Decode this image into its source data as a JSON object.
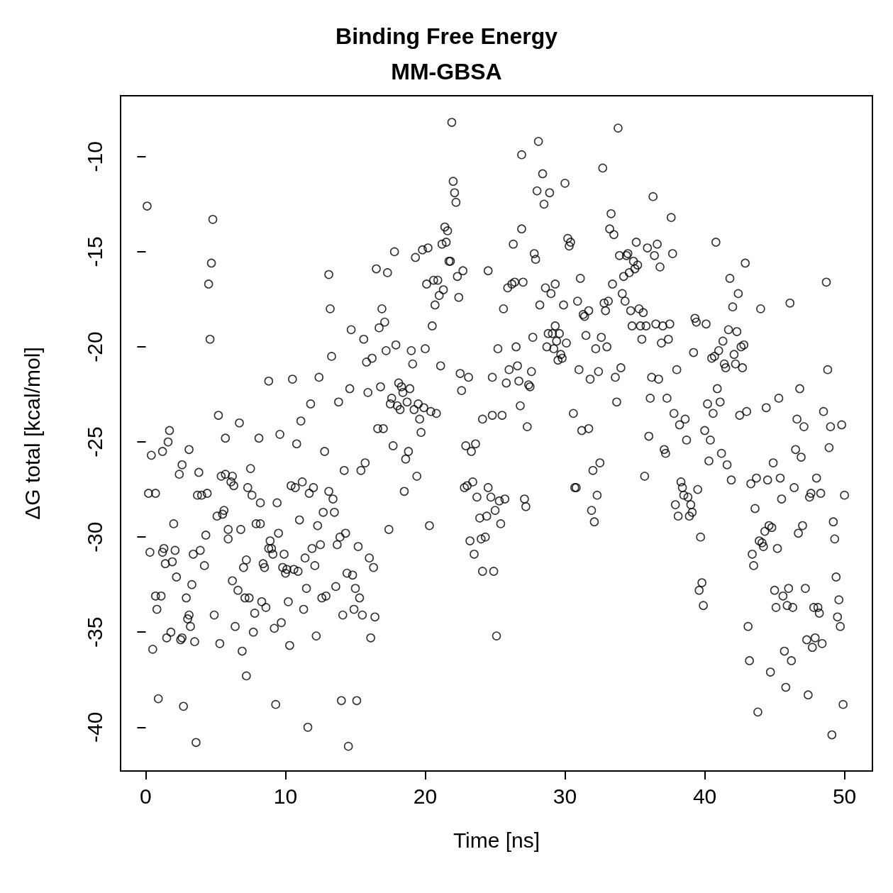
{
  "chart_data": {
    "type": "scatter",
    "title": "Binding Free Energy",
    "subtitle": "MM-GBSA",
    "xlabel": "Time [ns]",
    "ylabel": "ΔG total [kcal/mol]",
    "xlim": [
      -1.8,
      52
    ],
    "ylim": [
      -42.3,
      -6.8
    ],
    "xticks": [
      0,
      10,
      20,
      30,
      40,
      50
    ],
    "yticks": [
      -10,
      -15,
      -20,
      -25,
      -30,
      -35,
      -40
    ],
    "grid": false,
    "marker": "circle",
    "series": [
      {
        "color": "#000000",
        "x": [
          0.1,
          0.3,
          0.2,
          0.4,
          0.5,
          0.7,
          0.7,
          0.8,
          0.9,
          1.1,
          1.2,
          1.3,
          1.2,
          1.4,
          1.5,
          1.6,
          1.7,
          1.8,
          1.9,
          2.0,
          2.1,
          2.2,
          2.4,
          2.5,
          2.6,
          2.6,
          2.7,
          2.9,
          3.0,
          3.1,
          3.1,
          3.2,
          3.3,
          3.4,
          3.5,
          3.6,
          3.7,
          3.8,
          3.9,
          4.0,
          4.2,
          4.3,
          4.4,
          4.5,
          4.6,
          4.7,
          4.8,
          4.9,
          5.1,
          5.2,
          5.3,
          5.4,
          5.5,
          5.6,
          5.7,
          5.7,
          5.9,
          5.9,
          6.1,
          6.2,
          6.2,
          6.3,
          6.4,
          6.6,
          6.7,
          6.8,
          6.9,
          7.0,
          7.1,
          7.2,
          7.2,
          7.3,
          7.4,
          7.5,
          7.6,
          7.7,
          7.8,
          7.9,
          8.1,
          8.2,
          8.2,
          8.3,
          8.4,
          8.5,
          8.6,
          8.8,
          8.8,
          8.9,
          9.0,
          9.1,
          9.2,
          9.3,
          9.4,
          9.5,
          9.6,
          9.7,
          9.8,
          9.9,
          10.0,
          10.1,
          10.2,
          10.3,
          10.4,
          10.5,
          10.6,
          10.7,
          10.8,
          10.9,
          11.0,
          11.1,
          11.2,
          11.3,
          11.4,
          11.5,
          11.6,
          11.7,
          11.8,
          11.9,
          12.0,
          12.1,
          12.2,
          12.3,
          12.4,
          12.5,
          12.6,
          12.7,
          12.8,
          12.9,
          13.1,
          13.1,
          13.2,
          13.3,
          13.4,
          13.5,
          13.6,
          13.7,
          13.8,
          13.9,
          14.0,
          14.1,
          14.2,
          14.3,
          14.4,
          14.5,
          14.6,
          14.7,
          14.8,
          14.9,
          15.0,
          15.1,
          15.2,
          15.3,
          15.4,
          15.5,
          15.6,
          15.7,
          15.8,
          15.9,
          16.0,
          16.1,
          16.2,
          16.3,
          16.4,
          16.5,
          16.6,
          16.7,
          16.8,
          16.9,
          17.0,
          17.1,
          17.2,
          17.3,
          17.4,
          17.5,
          17.6,
          17.7,
          17.8,
          17.9,
          18.0,
          18.1,
          18.2,
          18.3,
          18.4,
          18.5,
          18.6,
          18.7,
          18.8,
          18.9,
          19.0,
          19.1,
          19.2,
          19.3,
          19.4,
          19.5,
          19.6,
          19.7,
          19.8,
          19.9,
          20.0,
          20.1,
          20.2,
          20.3,
          20.4,
          20.5,
          20.6,
          20.7,
          20.8,
          20.9,
          21.0,
          21.1,
          21.2,
          21.3,
          21.4,
          21.5,
          21.6,
          21.7,
          21.8,
          21.9,
          22.0,
          22.1,
          22.2,
          22.3,
          22.4,
          22.5,
          22.6,
          22.7,
          22.8,
          22.9,
          23.0,
          23.1,
          23.2,
          23.3,
          23.4,
          23.5,
          23.6,
          23.7,
          23.9,
          24.0,
          24.1,
          24.1,
          24.3,
          24.4,
          24.5,
          24.5,
          24.7,
          24.8,
          24.8,
          24.9,
          25.0,
          25.1,
          25.2,
          25.3,
          25.4,
          25.5,
          25.6,
          25.7,
          25.8,
          25.9,
          26.0,
          26.2,
          26.3,
          26.4,
          26.5,
          26.6,
          26.7,
          26.8,
          26.9,
          26.9,
          27.0,
          27.1,
          27.2,
          27.3,
          27.4,
          27.5,
          27.6,
          27.7,
          27.8,
          27.9,
          28.0,
          28.1,
          28.2,
          28.4,
          28.5,
          28.6,
          28.7,
          28.8,
          28.9,
          29.0,
          29.1,
          29.2,
          29.3,
          29.3,
          29.4,
          29.5,
          29.6,
          29.7,
          29.8,
          29.9,
          30.0,
          30.1,
          30.2,
          30.3,
          30.4,
          30.6,
          30.7,
          30.8,
          30.9,
          31.0,
          31.1,
          31.2,
          31.3,
          31.4,
          31.5,
          31.7,
          31.7,
          31.8,
          31.9,
          32.0,
          32.1,
          32.2,
          32.3,
          32.4,
          32.5,
          32.6,
          32.7,
          32.8,
          32.9,
          33.0,
          33.1,
          33.2,
          33.3,
          33.4,
          33.5,
          33.6,
          33.7,
          33.8,
          33.9,
          34.0,
          34.1,
          34.2,
          34.3,
          34.4,
          34.5,
          34.6,
          34.7,
          34.8,
          34.9,
          35.0,
          35.1,
          35.2,
          35.3,
          35.4,
          35.5,
          35.6,
          35.7,
          35.8,
          35.9,
          36.0,
          36.1,
          36.2,
          36.3,
          36.4,
          36.5,
          36.6,
          36.7,
          36.8,
          36.9,
          37.0,
          37.1,
          37.2,
          37.3,
          37.4,
          37.5,
          37.6,
          37.7,
          37.8,
          37.9,
          38.0,
          38.1,
          38.2,
          38.3,
          38.4,
          38.5,
          38.6,
          38.7,
          38.8,
          38.9,
          39.0,
          39.1,
          39.2,
          39.3,
          39.4,
          39.5,
          39.6,
          39.7,
          39.8,
          39.9,
          40.0,
          40.1,
          40.2,
          40.3,
          40.4,
          40.5,
          40.6,
          40.7,
          40.8,
          40.9,
          41.0,
          41.1,
          41.2,
          41.3,
          41.4,
          41.5,
          41.6,
          41.7,
          41.8,
          41.9,
          42.0,
          42.1,
          42.2,
          42.3,
          42.4,
          42.5,
          42.6,
          42.7,
          42.8,
          42.9,
          43.0,
          43.1,
          43.2,
          43.3,
          43.4,
          43.5,
          43.6,
          43.7,
          43.8,
          43.9,
          44.0,
          44.1,
          44.2,
          44.3,
          44.4,
          44.5,
          44.6,
          44.7,
          44.8,
          44.9,
          45.0,
          45.1,
          45.2,
          45.3,
          45.4,
          45.5,
          45.6,
          45.7,
          45.8,
          45.9,
          46.0,
          46.1,
          46.2,
          46.3,
          46.4,
          46.5,
          46.6,
          46.7,
          46.8,
          46.9,
          47.0,
          47.1,
          47.2,
          47.3,
          47.4,
          47.5,
          47.6,
          47.7,
          47.8,
          47.9,
          48.0,
          48.1,
          48.2,
          48.3,
          48.4,
          48.5,
          48.7,
          48.8,
          48.9,
          49.0,
          49.1,
          49.2,
          49.3,
          49.4,
          49.5,
          49.6,
          49.7,
          49.8,
          49.9,
          50.0
        ],
        "values": [
          -12.6,
          -30.8,
          -27.7,
          -25.7,
          -35.9,
          -33.1,
          -27.7,
          -33.8,
          -38.5,
          -33.1,
          -30.8,
          -30.6,
          -25.5,
          -31.4,
          -35.3,
          -25.0,
          -24.4,
          -35.0,
          -31.3,
          -29.3,
          -30.7,
          -32.1,
          -26.7,
          -35.4,
          -35.3,
          -26.2,
          -38.9,
          -33.2,
          -34.3,
          -34.1,
          -25.4,
          -34.7,
          -32.5,
          -30.9,
          -35.5,
          -40.8,
          -27.8,
          -26.6,
          -30.7,
          -27.8,
          -31.5,
          -29.9,
          -27.7,
          -16.7,
          -19.6,
          -15.6,
          -13.3,
          -34.1,
          -28.9,
          -23.6,
          -35.6,
          -26.8,
          -28.8,
          -28.6,
          -24.8,
          -26.7,
          -30.1,
          -29.6,
          -27.1,
          -26.8,
          -32.3,
          -27.3,
          -34.7,
          -32.8,
          -24.0,
          -29.6,
          -36.0,
          -31.6,
          -33.2,
          -31.2,
          -37.3,
          -27.4,
          -33.2,
          -26.4,
          -27.8,
          -35.0,
          -34.0,
          -29.3,
          -24.8,
          -28.2,
          -29.3,
          -33.4,
          -31.4,
          -31.6,
          -33.7,
          -21.8,
          -30.6,
          -30.2,
          -30.6,
          -30.9,
          -34.8,
          -38.8,
          -28.2,
          -29.8,
          -24.6,
          -34.5,
          -31.6,
          -30.9,
          -31.9,
          -31.7,
          -33.4,
          -35.7,
          -27.3,
          -21.7,
          -31.7,
          -27.4,
          -25.1,
          -31.8,
          -29.1,
          -23.9,
          -27.1,
          -33.8,
          -31.1,
          -32.7,
          -40.0,
          -27.7,
          -23.0,
          -30.6,
          -27.4,
          -31.5,
          -35.2,
          -29.4,
          -21.6,
          -30.4,
          -33.2,
          -28.7,
          -25.5,
          -33.1,
          -27.6,
          -16.2,
          -18.0,
          -20.5,
          -28.0,
          -28.7,
          -32.6,
          -30.4,
          -22.9,
          -30.0,
          -38.6,
          -34.1,
          -26.5,
          -29.8,
          -31.9,
          -41.0,
          -22.2,
          -19.1,
          -32.0,
          -33.8,
          -32.7,
          -38.6,
          -30.5,
          -33.2,
          -26.5,
          -34.1,
          -19.6,
          -26.1,
          -20.8,
          -22.4,
          -31.1,
          -35.3,
          -20.6,
          -31.6,
          -34.2,
          -15.9,
          -24.3,
          -19.0,
          -22.1,
          -18.0,
          -24.3,
          -18.7,
          -20.2,
          -16.1,
          -29.6,
          -23.0,
          -22.7,
          -25.2,
          -15.0,
          -19.9,
          -23.1,
          -21.9,
          -23.3,
          -22.1,
          -22.4,
          -27.6,
          -25.9,
          -22.9,
          -25.5,
          -22.2,
          -20.2,
          -20.9,
          -23.3,
          -15.3,
          -26.8,
          -23.0,
          -23.8,
          -24.5,
          -14.9,
          -23.2,
          -20.1,
          -16.7,
          -14.8,
          -29.4,
          -23.4,
          -18.9,
          -16.5,
          -17.8,
          -23.5,
          -16.5,
          -17.3,
          -21.0,
          -14.6,
          -17.0,
          -13.7,
          -14.5,
          -13.9,
          -15.5,
          -15.5,
          -8.2,
          -11.3,
          -11.9,
          -12.4,
          -16.3,
          -17.4,
          -21.4,
          -22.3,
          -16.0,
          -27.4,
          -25.2,
          -27.3,
          -21.6,
          -30.2,
          -25.5,
          -27.1,
          -30.9,
          -25.1,
          -27.9,
          -29.0,
          -30.1,
          -23.8,
          -31.8,
          -30.0,
          -28.9,
          -27.4,
          -16.0,
          -27.9,
          -21.6,
          -23.6,
          -31.8,
          -28.6,
          -35.2,
          -20.1,
          -28.1,
          -29.3,
          -23.6,
          -18.0,
          -28.0,
          -21.9,
          -16.9,
          -21.2,
          -16.7,
          -14.6,
          -16.6,
          -20.0,
          -21.0,
          -21.8,
          -23.1,
          -9.9,
          -13.8,
          -16.6,
          -28.0,
          -28.4,
          -24.2,
          -22.0,
          -22.1,
          -21.3,
          -19.5,
          -15.1,
          -15.4,
          -11.8,
          -9.2,
          -17.8,
          -10.9,
          -12.5,
          -16.9,
          -20.0,
          -19.3,
          -11.9,
          -17.2,
          -19.3,
          -20.1,
          -16.7,
          -18.9,
          -19.7,
          -20.7,
          -19.3,
          -20.4,
          -20.6,
          -17.8,
          -11.4,
          -19.8,
          -14.3,
          -14.7,
          -14.5,
          -23.5,
          -27.4,
          -27.4,
          -17.6,
          -21.2,
          -16.4,
          -24.4,
          -18.3,
          -18.4,
          -19.4,
          -24.3,
          -18.1,
          -21.7,
          -28.6,
          -26.5,
          -29.2,
          -20.1,
          -27.8,
          -21.3,
          -26.1,
          -19.5,
          -10.6,
          -17.7,
          -18.1,
          -20.0,
          -17.6,
          -13.8,
          -13.0,
          -16.7,
          -14.1,
          -21.6,
          -22.9,
          -8.5,
          -15.2,
          -21.1,
          -17.2,
          -16.3,
          -17.6,
          -15.2,
          -15.1,
          -16.1,
          -18.1,
          -18.9,
          -15.5,
          -15.9,
          -14.5,
          -15.7,
          -18.0,
          -18.9,
          -19.6,
          -18.2,
          -26.8,
          -18.9,
          -14.8,
          -24.7,
          -22.7,
          -21.6,
          -12.1,
          -15.2,
          -18.8,
          -14.6,
          -21.7,
          -15.8,
          -19.8,
          -18.9,
          -25.4,
          -25.6,
          -22.7,
          -19.6,
          -18.8,
          -13.2,
          -15.1,
          -23.5,
          -28.3,
          -21.2,
          -28.9,
          -24.1,
          -27.1,
          -27.4,
          -27.8,
          -23.8,
          -24.9,
          -27.9,
          -28.9,
          -28.3,
          -28.7,
          -20.3,
          -18.5,
          -18.7,
          -27.5,
          -32.8,
          -30.0,
          -32.4,
          -33.6,
          -24.4,
          -18.8,
          -23.0,
          -26.0,
          -24.9,
          -20.6,
          -23.5,
          -20.5,
          -14.5,
          -22.2,
          -20.2,
          -22.9,
          -25.6,
          -19.7,
          -20.9,
          -21.1,
          -26.2,
          -19.1,
          -16.4,
          -27.0,
          -17.9,
          -20.4,
          -20.9,
          -19.2,
          -17.2,
          -23.6,
          -20.0,
          -21.1,
          -19.9,
          -15.6,
          -23.4,
          -34.7,
          -36.5,
          -27.2,
          -30.9,
          -31.5,
          -28.5,
          -26.9,
          -39.2,
          -30.2,
          -18.0,
          -30.3,
          -30.5,
          -29.7,
          -23.2,
          -27.0,
          -29.4,
          -37.1,
          -29.5,
          -26.1,
          -32.8,
          -33.7,
          -30.6,
          -22.7,
          -26.9,
          -28.0,
          -33.1,
          -36.0,
          -37.9,
          -33.6,
          -32.7,
          -17.7,
          -36.5,
          -33.7,
          -27.4,
          -25.4,
          -23.8,
          -29.8,
          -22.2,
          -25.8,
          -29.4,
          -24.2,
          -32.7,
          -35.4,
          -38.3,
          -27.9,
          -27.7,
          -35.8,
          -33.7,
          -35.3,
          -26.9,
          -33.7,
          -34.0,
          -27.7,
          -35.6,
          -23.4,
          -16.6,
          -21.2,
          -25.3,
          -24.2,
          -40.4,
          -29.2,
          -30.1,
          -32.1,
          -34.2,
          -33.3,
          -34.7,
          -24.1,
          -38.8,
          -27.8
        ]
      }
    ]
  }
}
